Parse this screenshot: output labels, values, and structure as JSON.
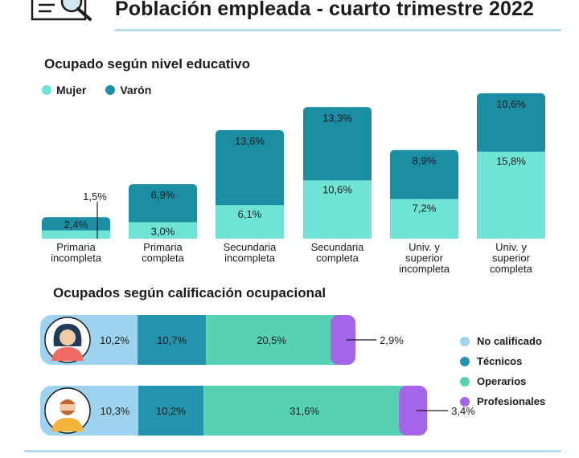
{
  "header": {
    "title": "Población empleada - cuarto trimestre 2022",
    "icon": "magnifier-document-icon"
  },
  "colors": {
    "mujer": "#6fe3d4",
    "varon": "#1b8ea4",
    "no_calificado": "#9dd3ef",
    "tecnicos": "#2593ad",
    "operarios": "#56d1b4",
    "profesionales": "#a465e8"
  },
  "chart_data": [
    {
      "type": "bar",
      "stacked": true,
      "title": "Ocupado según nivel educativo",
      "legend": {
        "position": "top-left",
        "entries": [
          "Mujer",
          "Varón"
        ]
      },
      "categories": [
        "Primaria incompleta",
        "Primaria completa",
        "Secundaria incompleta",
        "Secundaria completa",
        "Univ. y superior incompleta",
        "Univ. y superior completa"
      ],
      "category_lines": [
        [
          "Primaria",
          "incompleta"
        ],
        [
          "Primaria",
          "completa"
        ],
        [
          "Secundaria",
          "incompleta"
        ],
        [
          "Secundaria",
          "completa"
        ],
        [
          "Univ. y",
          "superior",
          "incompleta"
        ],
        [
          "Univ. y",
          "superior",
          "completa"
        ]
      ],
      "series": [
        {
          "name": "Mujer",
          "values": [
            1.5,
            3.0,
            6.1,
            10.6,
            7.2,
            15.8
          ],
          "labels": [
            "1,5%",
            "3,0%",
            "6,1%",
            "10,6%",
            "7,2%",
            "15,8%"
          ]
        },
        {
          "name": "Varón",
          "values": [
            2.4,
            6.9,
            13.6,
            13.3,
            8.9,
            10.6
          ],
          "labels": [
            "2,4%",
            "6,9%",
            "13,6%",
            "13,3%",
            "8,9%",
            "10,6%"
          ]
        }
      ]
    },
    {
      "type": "bar",
      "orientation": "horizontal",
      "stacked": true,
      "title": "Ocupados según calificación ocupacional",
      "legend": {
        "position": "right",
        "entries": [
          "No calificado",
          "Técnicos",
          "Operarios",
          "Profesionales"
        ]
      },
      "categories": [
        "Mujer",
        "Varón"
      ],
      "category_icons": [
        "woman-avatar-icon",
        "man-avatar-icon"
      ],
      "series": [
        {
          "name": "No calificado",
          "values": [
            10.2,
            10.3
          ],
          "labels": [
            "10,2%",
            "10,3%"
          ]
        },
        {
          "name": "Técnicos",
          "values": [
            10.7,
            10.2
          ],
          "labels": [
            "10,7%",
            "10,2%"
          ]
        },
        {
          "name": "Operarios",
          "values": [
            20.5,
            31.6
          ],
          "labels": [
            "20,5%",
            "31,6%"
          ]
        },
        {
          "name": "Profesionales",
          "values": [
            2.9,
            3.4
          ],
          "labels": [
            "2,9%",
            "3,4%"
          ]
        }
      ]
    }
  ]
}
